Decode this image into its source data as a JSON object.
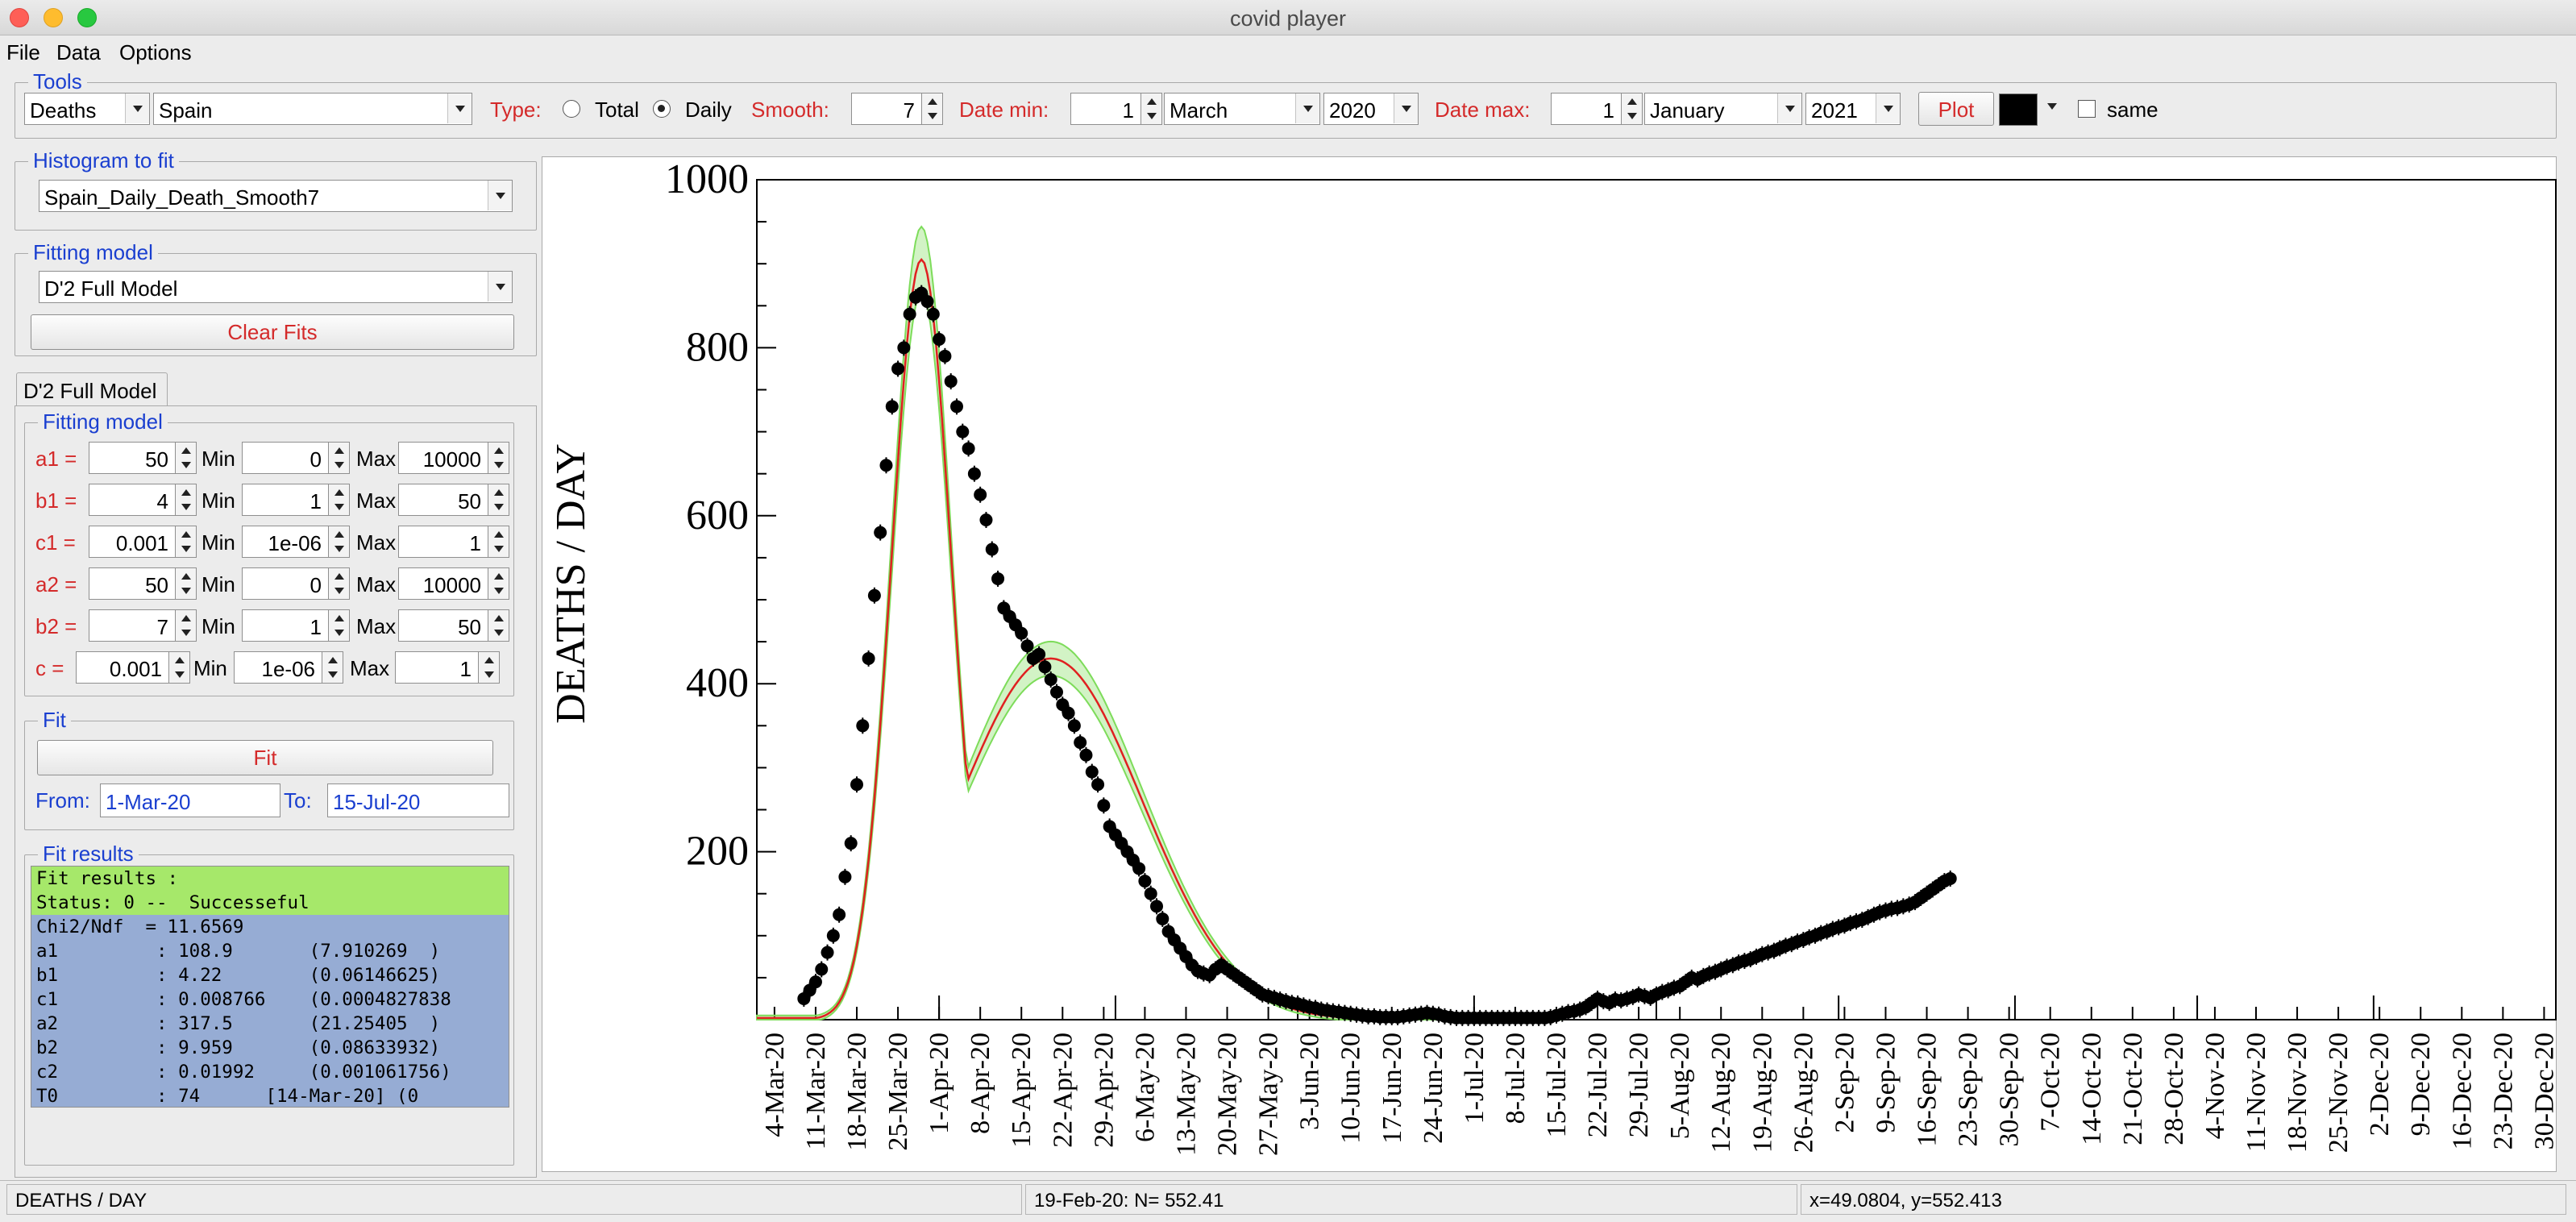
{
  "window": {
    "title": "covid player"
  },
  "menu": [
    "File",
    "Data",
    "Options"
  ],
  "tools": {
    "group_label": "Tools",
    "quantity": "Deaths",
    "country": "Spain",
    "type_label": "Type:",
    "type_total": "Total",
    "type_daily": "Daily",
    "type_selected": "Daily",
    "smooth_label": "Smooth:",
    "smooth_value": "7",
    "date_min_label": "Date min:",
    "date_min_day": "1",
    "date_min_month": "March",
    "date_min_year": "2020",
    "date_max_label": "Date max:",
    "date_max_day": "1",
    "date_max_month": "January",
    "date_max_year": "2021",
    "plot_button": "Plot",
    "plot_color": "#000000",
    "same_label": "same",
    "same_checked": false
  },
  "histogram": {
    "group_label": "Histogram to fit",
    "value": "Spain_Daily_Death_Smooth7"
  },
  "fitting_model_select": {
    "group_label": "Fitting model",
    "value": "D'2 Full Model",
    "clear_button": "Clear Fits"
  },
  "model_tab": {
    "tab_label": "D'2 Full Model",
    "group_label": "Fitting model",
    "min_label": "Min",
    "max_label": "Max",
    "params": [
      {
        "name": "a1 =",
        "value": "50",
        "min": "0",
        "max": "10000"
      },
      {
        "name": "b1 =",
        "value": "4",
        "min": "1",
        "max": "50"
      },
      {
        "name": "c1 =",
        "value": "0.001",
        "min": "1e-06",
        "max": "1"
      },
      {
        "name": "a2 =",
        "value": "50",
        "min": "0",
        "max": "10000"
      },
      {
        "name": "b2 =",
        "value": "7",
        "min": "1",
        "max": "50"
      },
      {
        "name": "c =",
        "value": "0.001",
        "min": "1e-06",
        "max": "1"
      }
    ]
  },
  "fit": {
    "group_label": "Fit",
    "fit_button": "Fit",
    "from_label": "From:",
    "from_value": "1-Mar-20",
    "to_label": "To:",
    "to_value": "15-Jul-20"
  },
  "fit_results": {
    "group_label": "Fit results",
    "header": [
      "Fit results :",
      "Status: 0 --  Successeful"
    ],
    "lines": [
      "Chi2/Ndf  = 11.6569",
      "a1         : 108.9       (7.910269  )",
      "b1         : 4.22        (0.06146625)",
      "c1         : 0.008766    (0.0004827838",
      "a2         : 317.5       (21.25405  )",
      "b2         : 9.959       (0.08633932)",
      "c2         : 0.01992     (0.001061756)",
      "T0         : 74      [14-Mar-20] (0"
    ]
  },
  "status": {
    "left": "DEATHS / DAY",
    "middle": "19-Feb-20: N= 552.41",
    "right": "x=49.0804, y=552.413"
  },
  "colors": {
    "data_points": "#000000",
    "fit_line": "#e02020",
    "band": "#7ddc5a"
  },
  "chart_data": {
    "type": "scatter",
    "ylabel": "DEATHS / DAY",
    "xlabel": "",
    "ylim": [
      0,
      1000
    ],
    "y_ticks": [
      "200",
      "400",
      "600",
      "800",
      "1000"
    ],
    "x_tick_labels": [
      "4-Mar-20",
      "11-Mar-20",
      "18-Mar-20",
      "25-Mar-20",
      "1-Apr-20",
      "8-Apr-20",
      "15-Apr-20",
      "22-Apr-20",
      "29-Apr-20",
      "6-May-20",
      "13-May-20",
      "20-May-20",
      "27-May-20",
      "3-Jun-20",
      "10-Jun-20",
      "17-Jun-20",
      "24-Jun-20",
      "1-Jul-20",
      "8-Jul-20",
      "15-Jul-20",
      "22-Jul-20",
      "29-Jul-20",
      "5-Aug-20",
      "12-Aug-20",
      "19-Aug-20",
      "26-Aug-20",
      "2-Sep-20",
      "9-Sep-20",
      "16-Sep-20",
      "23-Sep-20",
      "30-Sep-20",
      "7-Oct-20",
      "14-Oct-20",
      "21-Oct-20",
      "28-Oct-20",
      "4-Nov-20",
      "11-Nov-20",
      "18-Nov-20",
      "25-Nov-20",
      "2-Dec-20",
      "9-Dec-20",
      "16-Dec-20",
      "23-Dec-20",
      "30-Dec-20"
    ],
    "x_start": "2020-03-01",
    "x_end": "2021-01-01",
    "series": [
      {
        "values_by_date": [
          [
            "2020-03-09",
            25
          ],
          [
            "2020-03-10",
            35
          ],
          [
            "2020-03-11",
            45
          ],
          [
            "2020-03-12",
            60
          ],
          [
            "2020-03-13",
            80
          ],
          [
            "2020-03-14",
            100
          ],
          [
            "2020-03-15",
            125
          ],
          [
            "2020-03-16",
            170
          ],
          [
            "2020-03-17",
            210
          ],
          [
            "2020-03-18",
            280
          ],
          [
            "2020-03-19",
            350
          ],
          [
            "2020-03-20",
            430
          ],
          [
            "2020-03-21",
            505
          ],
          [
            "2020-03-22",
            580
          ],
          [
            "2020-03-23",
            660
          ],
          [
            "2020-03-24",
            730
          ],
          [
            "2020-03-25",
            775
          ],
          [
            "2020-03-26",
            800
          ],
          [
            "2020-03-27",
            840
          ],
          [
            "2020-03-28",
            860
          ],
          [
            "2020-03-29",
            865
          ],
          [
            "2020-03-30",
            855
          ],
          [
            "2020-03-31",
            840
          ],
          [
            "2020-04-01",
            810
          ],
          [
            "2020-04-02",
            790
          ],
          [
            "2020-04-03",
            760
          ],
          [
            "2020-04-04",
            730
          ],
          [
            "2020-04-05",
            700
          ],
          [
            "2020-04-06",
            680
          ],
          [
            "2020-04-07",
            650
          ],
          [
            "2020-04-08",
            625
          ],
          [
            "2020-04-09",
            595
          ],
          [
            "2020-04-10",
            560
          ],
          [
            "2020-04-11",
            525
          ],
          [
            "2020-04-12",
            490
          ],
          [
            "2020-04-13",
            480
          ],
          [
            "2020-04-14",
            470
          ],
          [
            "2020-04-15",
            460
          ],
          [
            "2020-04-16",
            445
          ],
          [
            "2020-04-17",
            430
          ],
          [
            "2020-04-18",
            435
          ],
          [
            "2020-04-19",
            420
          ],
          [
            "2020-04-20",
            405
          ],
          [
            "2020-04-21",
            390
          ],
          [
            "2020-04-22",
            375
          ],
          [
            "2020-04-23",
            365
          ],
          [
            "2020-04-24",
            350
          ],
          [
            "2020-04-25",
            330
          ],
          [
            "2020-04-26",
            315
          ],
          [
            "2020-04-27",
            295
          ],
          [
            "2020-04-28",
            280
          ],
          [
            "2020-04-29",
            255
          ],
          [
            "2020-04-30",
            230
          ],
          [
            "2020-05-01",
            220
          ],
          [
            "2020-05-02",
            210
          ],
          [
            "2020-05-03",
            200
          ],
          [
            "2020-05-04",
            190
          ],
          [
            "2020-05-05",
            180
          ],
          [
            "2020-05-06",
            165
          ],
          [
            "2020-05-07",
            150
          ],
          [
            "2020-05-08",
            135
          ],
          [
            "2020-05-09",
            120
          ],
          [
            "2020-05-10",
            105
          ],
          [
            "2020-05-11",
            95
          ],
          [
            "2020-05-12",
            85
          ],
          [
            "2020-05-13",
            75
          ],
          [
            "2020-05-14",
            65
          ],
          [
            "2020-05-15",
            58
          ],
          [
            "2020-05-16",
            55
          ],
          [
            "2020-05-17",
            53
          ],
          [
            "2020-05-18",
            60
          ],
          [
            "2020-05-19",
            65
          ],
          [
            "2020-05-20",
            60
          ],
          [
            "2020-05-21",
            55
          ],
          [
            "2020-05-22",
            50
          ],
          [
            "2020-05-23",
            45
          ],
          [
            "2020-05-24",
            40
          ],
          [
            "2020-05-25",
            35
          ],
          [
            "2020-05-26",
            30
          ],
          [
            "2020-05-27",
            28
          ],
          [
            "2020-05-28",
            26
          ],
          [
            "2020-05-29",
            24
          ],
          [
            "2020-05-30",
            22
          ],
          [
            "2020-05-31",
            20
          ],
          [
            "2020-06-01",
            19
          ],
          [
            "2020-06-02",
            17
          ],
          [
            "2020-06-03",
            15
          ],
          [
            "2020-06-04",
            14
          ],
          [
            "2020-06-05",
            12
          ],
          [
            "2020-06-06",
            11
          ],
          [
            "2020-06-07",
            10
          ],
          [
            "2020-06-08",
            9
          ],
          [
            "2020-06-09",
            8
          ],
          [
            "2020-06-10",
            7
          ],
          [
            "2020-06-11",
            6
          ],
          [
            "2020-06-12",
            5
          ],
          [
            "2020-06-13",
            4
          ],
          [
            "2020-06-14",
            4
          ],
          [
            "2020-06-15",
            3
          ],
          [
            "2020-06-16",
            3
          ],
          [
            "2020-06-17",
            3
          ],
          [
            "2020-06-18",
            3
          ],
          [
            "2020-06-19",
            4
          ],
          [
            "2020-06-20",
            5
          ],
          [
            "2020-06-21",
            6
          ],
          [
            "2020-06-22",
            7
          ],
          [
            "2020-06-23",
            8
          ],
          [
            "2020-06-24",
            7
          ],
          [
            "2020-06-25",
            6
          ],
          [
            "2020-06-26",
            4
          ],
          [
            "2020-06-27",
            3
          ],
          [
            "2020-06-28",
            2
          ],
          [
            "2020-06-29",
            2
          ],
          [
            "2020-06-30",
            2
          ],
          [
            "2020-07-01",
            2
          ],
          [
            "2020-07-02",
            2
          ],
          [
            "2020-07-03",
            2
          ],
          [
            "2020-07-04",
            2
          ],
          [
            "2020-07-05",
            2
          ],
          [
            "2020-07-06",
            2
          ],
          [
            "2020-07-07",
            2
          ],
          [
            "2020-07-08",
            2
          ],
          [
            "2020-07-09",
            2
          ],
          [
            "2020-07-10",
            2
          ],
          [
            "2020-07-11",
            2
          ],
          [
            "2020-07-12",
            2
          ],
          [
            "2020-07-13",
            2
          ],
          [
            "2020-07-14",
            3
          ],
          [
            "2020-07-15",
            5
          ],
          [
            "2020-07-16",
            7
          ],
          [
            "2020-07-17",
            9
          ],
          [
            "2020-07-18",
            10
          ],
          [
            "2020-07-19",
            12
          ],
          [
            "2020-07-20",
            15
          ],
          [
            "2020-07-21",
            20
          ],
          [
            "2020-07-22",
            25
          ],
          [
            "2020-07-23",
            22
          ],
          [
            "2020-07-24",
            20
          ],
          [
            "2020-07-25",
            24
          ],
          [
            "2020-07-26",
            23
          ],
          [
            "2020-07-27",
            25
          ],
          [
            "2020-07-28",
            27
          ],
          [
            "2020-07-29",
            30
          ],
          [
            "2020-07-30",
            28
          ],
          [
            "2020-07-31",
            26
          ],
          [
            "2020-08-01",
            30
          ],
          [
            "2020-08-02",
            33
          ],
          [
            "2020-08-03",
            35
          ],
          [
            "2020-08-04",
            38
          ],
          [
            "2020-08-05",
            40
          ],
          [
            "2020-08-06",
            45
          ],
          [
            "2020-08-07",
            50
          ],
          [
            "2020-08-08",
            48
          ],
          [
            "2020-08-09",
            52
          ],
          [
            "2020-08-10",
            55
          ],
          [
            "2020-08-11",
            57
          ],
          [
            "2020-08-12",
            60
          ],
          [
            "2020-08-13",
            63
          ],
          [
            "2020-08-14",
            65
          ],
          [
            "2020-08-15",
            68
          ],
          [
            "2020-08-16",
            70
          ],
          [
            "2020-08-17",
            72
          ],
          [
            "2020-08-18",
            75
          ],
          [
            "2020-08-19",
            78
          ],
          [
            "2020-08-20",
            80
          ],
          [
            "2020-08-21",
            82
          ],
          [
            "2020-08-22",
            85
          ],
          [
            "2020-08-23",
            88
          ],
          [
            "2020-08-24",
            90
          ],
          [
            "2020-08-25",
            93
          ],
          [
            "2020-08-26",
            95
          ],
          [
            "2020-08-27",
            98
          ],
          [
            "2020-08-28",
            100
          ],
          [
            "2020-08-29",
            103
          ],
          [
            "2020-08-30",
            105
          ],
          [
            "2020-08-31",
            108
          ],
          [
            "2020-09-01",
            110
          ],
          [
            "2020-09-02",
            112
          ],
          [
            "2020-09-03",
            115
          ],
          [
            "2020-09-04",
            117
          ],
          [
            "2020-09-05",
            119
          ],
          [
            "2020-09-06",
            122
          ],
          [
            "2020-09-07",
            125
          ],
          [
            "2020-09-08",
            128
          ],
          [
            "2020-09-09",
            130
          ],
          [
            "2020-09-10",
            132
          ],
          [
            "2020-09-11",
            133
          ],
          [
            "2020-09-12",
            135
          ],
          [
            "2020-09-13",
            137
          ],
          [
            "2020-09-14",
            140
          ],
          [
            "2020-09-15",
            145
          ],
          [
            "2020-09-16",
            150
          ],
          [
            "2020-09-17",
            155
          ],
          [
            "2020-09-18",
            160
          ],
          [
            "2020-09-19",
            165
          ],
          [
            "2020-09-20",
            168
          ]
        ]
      }
    ]
  }
}
